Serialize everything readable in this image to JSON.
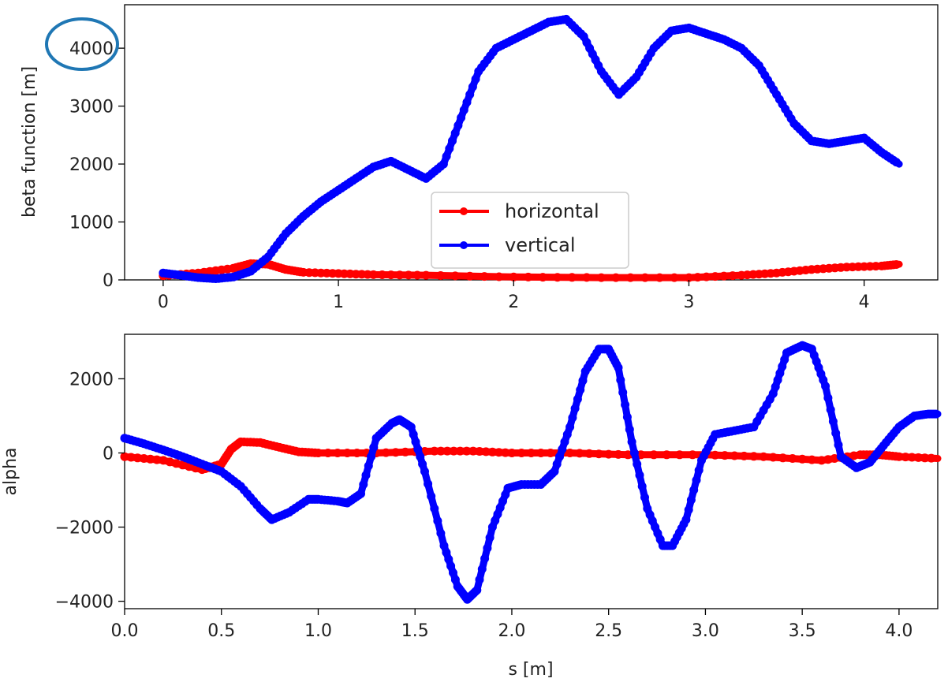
{
  "colors": {
    "horizontal": "#ff0000",
    "vertical": "#0000ff",
    "highlight": "#1f77b4"
  },
  "chart_data": [
    {
      "type": "line",
      "markers": "dot",
      "xlabel": "",
      "ylabel": "beta function [m]",
      "xlim": [
        -0.22,
        4.42
      ],
      "ylim": [
        0,
        4750
      ],
      "xticks": [
        0,
        1,
        2,
        3,
        4
      ],
      "yticks": [
        0,
        1000,
        2000,
        3000,
        4000
      ],
      "x_tick_labels": [
        "0",
        "1",
        "2",
        "3",
        "4"
      ],
      "y_tick_labels": [
        "0",
        "1000",
        "2000",
        "3000",
        "4000"
      ],
      "highlighted_tick": "4000",
      "legend": {
        "placement": "lower-center",
        "entries": [
          "horizontal",
          "vertical"
        ]
      },
      "series": [
        {
          "name": "horizontal",
          "color": "#ff0000",
          "x": [
            0,
            0.2,
            0.4,
            0.5,
            0.6,
            0.7,
            0.8,
            1.0,
            1.2,
            1.5,
            2.0,
            2.5,
            3.0,
            3.3,
            3.5,
            3.7,
            3.9,
            4.1,
            4.2
          ],
          "y": [
            70,
            120,
            200,
            280,
            270,
            180,
            130,
            110,
            90,
            80,
            50,
            40,
            40,
            80,
            120,
            180,
            220,
            240,
            270
          ]
        },
        {
          "name": "vertical",
          "color": "#0000ff",
          "x": [
            0,
            0.1,
            0.2,
            0.3,
            0.4,
            0.5,
            0.6,
            0.7,
            0.8,
            0.9,
            1.0,
            1.1,
            1.2,
            1.3,
            1.4,
            1.5,
            1.6,
            1.7,
            1.8,
            1.9,
            2.0,
            2.1,
            2.2,
            2.3,
            2.4,
            2.5,
            2.6,
            2.7,
            2.8,
            2.9,
            3.0,
            3.1,
            3.2,
            3.3,
            3.4,
            3.5,
            3.6,
            3.7,
            3.8,
            3.9,
            4.0,
            4.1,
            4.2
          ],
          "y": [
            120,
            80,
            40,
            20,
            50,
            150,
            400,
            800,
            1100,
            1350,
            1550,
            1750,
            1950,
            2050,
            1900,
            1750,
            2000,
            2800,
            3600,
            4000,
            4150,
            4300,
            4450,
            4500,
            4200,
            3600,
            3200,
            3500,
            4000,
            4300,
            4350,
            4250,
            4150,
            4000,
            3700,
            3200,
            2700,
            2400,
            2350,
            2400,
            2450,
            2200,
            2000
          ]
        }
      ]
    },
    {
      "type": "line",
      "markers": "dot",
      "xlabel": "s [m]",
      "ylabel": "alpha",
      "xlim": [
        0,
        4.2
      ],
      "ylim": [
        -4200,
        3200
      ],
      "xticks": [
        0,
        0.5,
        1.0,
        1.5,
        2.0,
        2.5,
        3.0,
        3.5,
        4.0
      ],
      "yticks": [
        -4000,
        -2000,
        0,
        2000
      ],
      "x_tick_labels": [
        "0.0",
        "0.5",
        "1.0",
        "1.5",
        "2.0",
        "2.5",
        "3.0",
        "3.5",
        "4.0"
      ],
      "y_tick_labels": [
        "−4000",
        "−2000",
        "0",
        "2000"
      ],
      "series": [
        {
          "name": "horizontal",
          "color": "#ff0000",
          "x": [
            0,
            0.2,
            0.4,
            0.5,
            0.55,
            0.6,
            0.7,
            0.8,
            0.9,
            1.0,
            1.3,
            1.6,
            1.8,
            2.0,
            2.3,
            2.6,
            3.0,
            3.3,
            3.6,
            3.8,
            3.9,
            4.0,
            4.2
          ],
          "y": [
            -100,
            -200,
            -450,
            -300,
            100,
            300,
            280,
            150,
            30,
            0,
            0,
            50,
            50,
            0,
            0,
            -50,
            -50,
            -100,
            -200,
            -50,
            -50,
            -100,
            -150
          ]
        },
        {
          "name": "vertical",
          "color": "#0000ff",
          "x": [
            0,
            0.1,
            0.2,
            0.3,
            0.4,
            0.5,
            0.6,
            0.7,
            0.76,
            0.85,
            0.95,
            1.0,
            1.1,
            1.15,
            1.22,
            1.3,
            1.38,
            1.42,
            1.48,
            1.55,
            1.65,
            1.72,
            1.77,
            1.82,
            1.9,
            1.98,
            2.05,
            2.15,
            2.22,
            2.3,
            2.38,
            2.45,
            2.5,
            2.55,
            2.62,
            2.7,
            2.78,
            2.83,
            2.9,
            2.98,
            3.05,
            3.15,
            3.25,
            3.35,
            3.42,
            3.5,
            3.55,
            3.62,
            3.7,
            3.78,
            3.85,
            3.92,
            4.0,
            4.08,
            4.15,
            4.2
          ],
          "y": [
            400,
            250,
            80,
            -100,
            -300,
            -500,
            -900,
            -1500,
            -1800,
            -1600,
            -1250,
            -1250,
            -1300,
            -1350,
            -1100,
            400,
            800,
            900,
            700,
            -500,
            -2500,
            -3600,
            -3950,
            -3700,
            -2000,
            -950,
            -850,
            -850,
            -500,
            700,
            2200,
            2800,
            2800,
            2300,
            300,
            -1500,
            -2500,
            -2500,
            -1800,
            -200,
            500,
            600,
            700,
            1600,
            2700,
            2900,
            2800,
            1800,
            -100,
            -400,
            -250,
            200,
            700,
            1000,
            1050,
            1050
          ]
        }
      ]
    }
  ]
}
